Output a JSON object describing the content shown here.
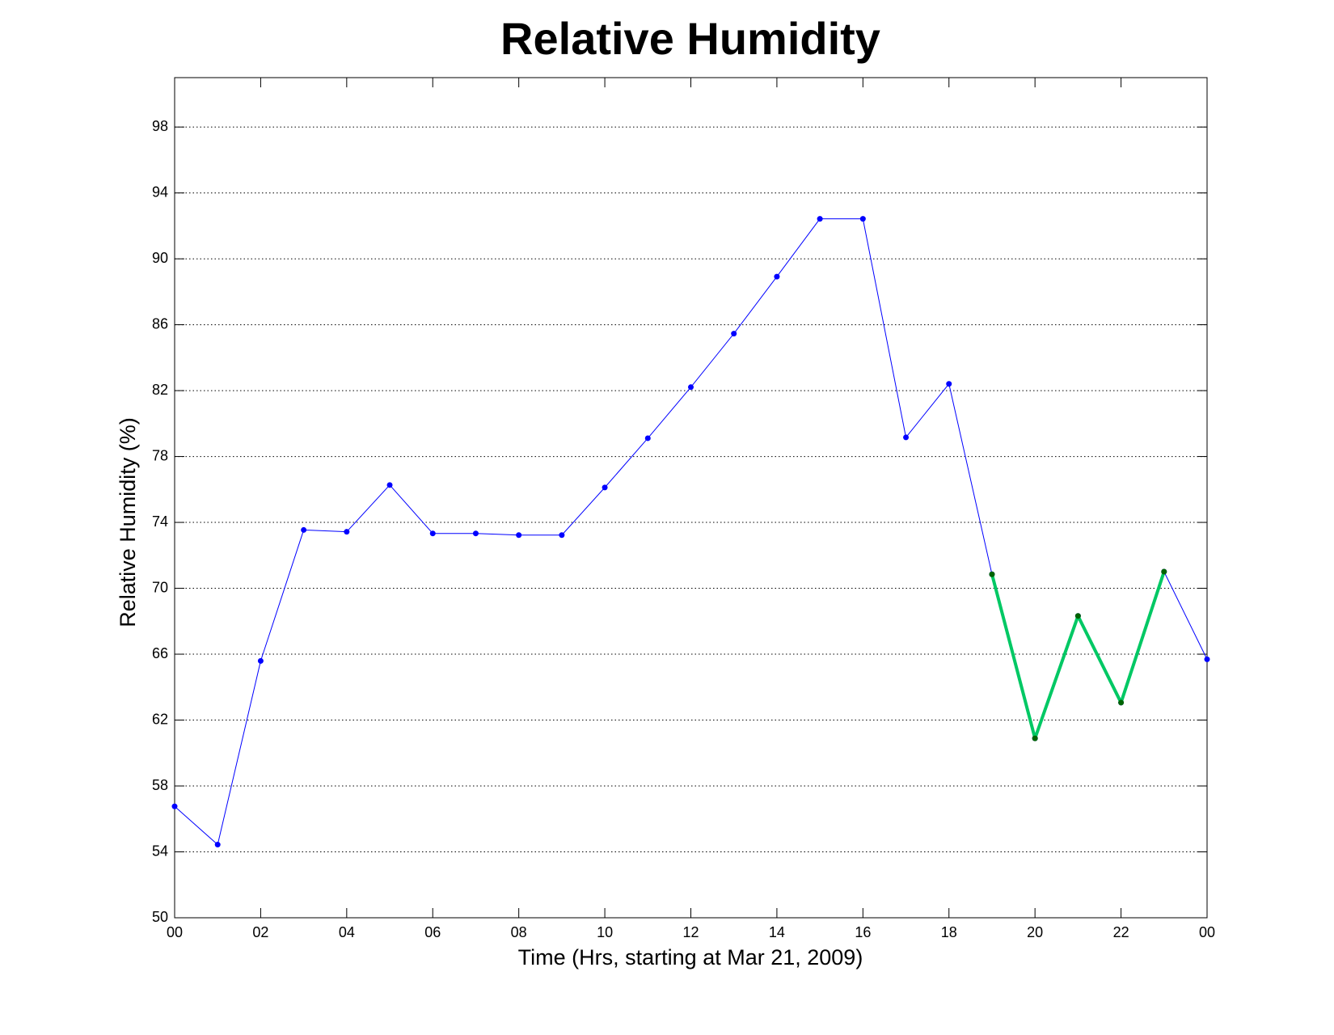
{
  "chart_data": {
    "type": "line",
    "title": "Relative Humidity",
    "x_label": "Time (Hrs, starting at Mar 21, 2009)",
    "y_label": "Relative Humidity (%)",
    "x": [
      0,
      1,
      2,
      3,
      4,
      5,
      6,
      7,
      8,
      9,
      10,
      11,
      12,
      13,
      14,
      15,
      16,
      17,
      18,
      19,
      20,
      21,
      22,
      23,
      24
    ],
    "series": [
      {
        "color": "#0000ff",
        "marker_color": "#0000ff",
        "line_width": 1,
        "values": [
          56.76,
          54.44,
          65.59,
          73.54,
          73.43,
          76.27,
          73.33,
          73.33,
          73.23,
          73.23,
          76.12,
          79.11,
          82.21,
          85.46,
          88.92,
          92.43,
          92.43,
          79.16,
          82.41,
          70.85,
          60.89,
          68.32,
          63.06,
          71.01,
          65.69
        ]
      },
      {
        "color": "#00c864",
        "marker_color": "#006400",
        "line_width": 4,
        "values": [
          null,
          null,
          null,
          null,
          null,
          null,
          null,
          null,
          null,
          null,
          null,
          null,
          null,
          null,
          null,
          null,
          null,
          null,
          null,
          70.85,
          60.89,
          68.32,
          63.06,
          71.01,
          null
        ]
      }
    ],
    "xlim": [
      0,
      24
    ],
    "ylim": [
      50,
      101
    ],
    "xticks": [
      {
        "value": 0,
        "label": "00"
      },
      {
        "value": 2,
        "label": "02"
      },
      {
        "value": 4,
        "label": "04"
      },
      {
        "value": 6,
        "label": "06"
      },
      {
        "value": 8,
        "label": "08"
      },
      10,
      12,
      14,
      16,
      18,
      20,
      22,
      {
        "value": 24,
        "label": "00"
      }
    ],
    "yticks": [
      50,
      54,
      58,
      62,
      66,
      70,
      74,
      78,
      82,
      86,
      90,
      94,
      98
    ],
    "grid": true
  }
}
